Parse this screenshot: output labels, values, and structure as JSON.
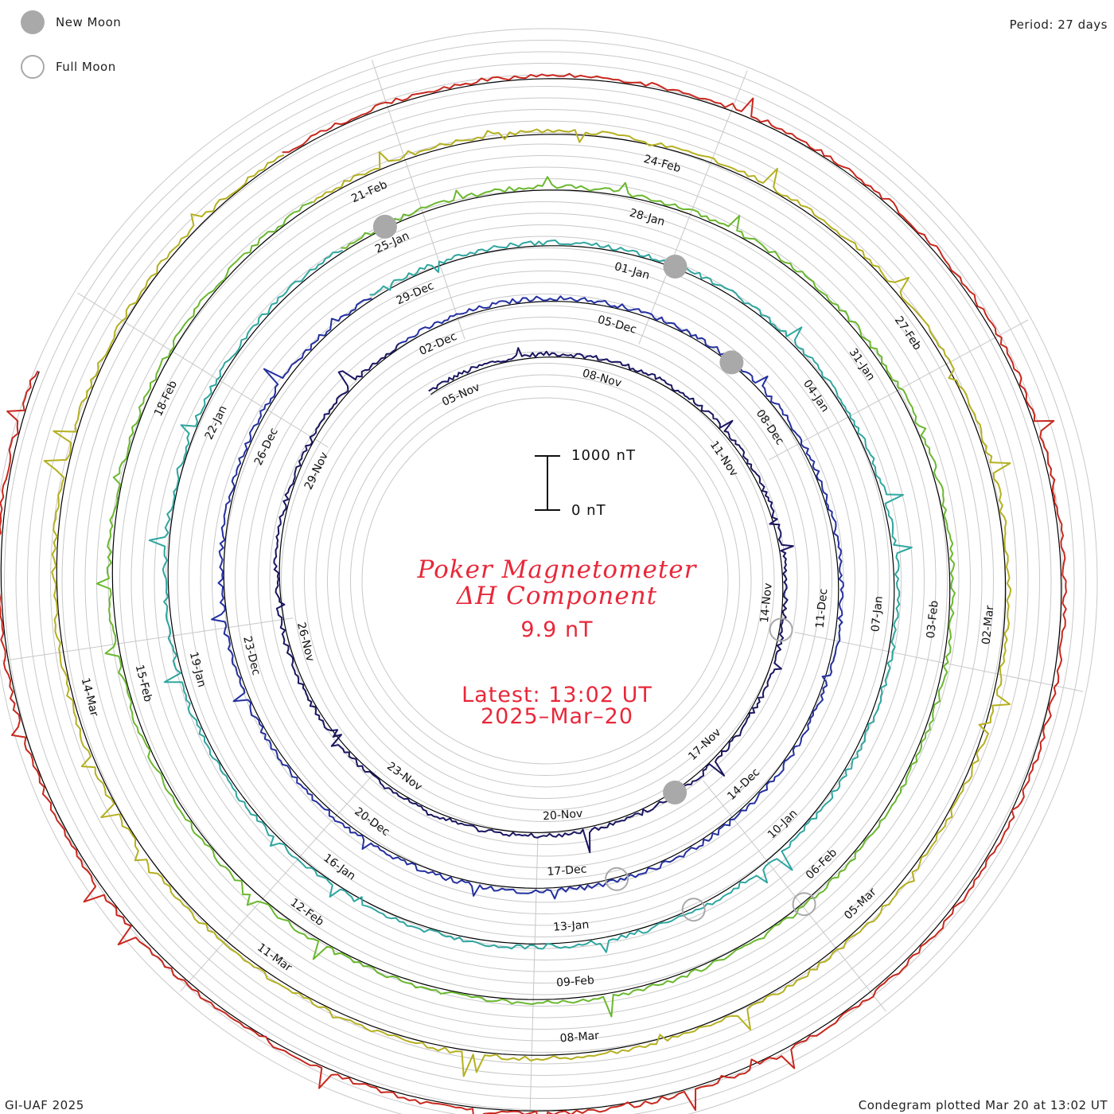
{
  "legend": {
    "new_moon_label": "New Moon",
    "full_moon_label": "Full Moon",
    "new_moon_color": "#a9a9a9"
  },
  "header": {
    "period": "Period: 27 days"
  },
  "title": {
    "line1": "Poker Magnetometer",
    "line2": "ΔH Component",
    "value": "9.9 nT",
    "latest": "Latest: 13:02 UT",
    "date": "2025–Mar–20",
    "color": "#e8283a"
  },
  "scale": {
    "top_label": "1000 nT",
    "bottom_label": "0 nT"
  },
  "footer": {
    "left": "GI-UAF 2025",
    "right": "Condegram plotted Mar 20 at 13:02 UT"
  },
  "chart_data": {
    "type": "line",
    "period_days": 27,
    "baseline": "spiral",
    "rotations": [
      {
        "name": "",
        "color": "#1a1660",
        "labels": [
          "05-Nov",
          "08-Nov",
          "11-Nov",
          "14-Nov",
          "17-Nov",
          "20-Nov",
          "23-Nov",
          "26-Nov",
          "29-Nov"
        ]
      },
      {
        "name": "",
        "color": "#2430a0",
        "labels": [
          "02-Dec",
          "05-Dec",
          "08-Dec",
          "11-Dec",
          "14-Dec",
          "17-Dec",
          "20-Dec",
          "23-Dec",
          "26-Dec"
        ]
      },
      {
        "name": "",
        "color": "#2fa6a0",
        "labels": [
          "29-Dec",
          "01-Jan",
          "04-Jan",
          "07-Jan",
          "10-Jan",
          "13-Jan",
          "16-Jan",
          "19-Jan",
          "22-Jan"
        ]
      },
      {
        "name": "",
        "color": "#6ab82e",
        "labels": [
          "25-Jan",
          "28-Jan",
          "31-Jan",
          "03-Feb",
          "06-Feb",
          "09-Feb",
          "12-Feb",
          "15-Feb",
          "18-Feb"
        ]
      },
      {
        "name": "",
        "color": "#b5b020",
        "labels": [
          "21-Feb",
          "24-Feb",
          "27-Feb",
          "02-Mar",
          "05-Mar",
          "08-Mar",
          "11-Mar",
          "14-Mar"
        ]
      },
      {
        "name": "",
        "color": "#c8281e",
        "labels": []
      }
    ],
    "scale_bar_nT": [
      0,
      1000
    ],
    "new_moons": [
      "2024-Dec-01",
      "2024-Dec-30",
      "2025-Jan-29",
      "2025-Feb-28"
    ],
    "full_moons": [
      "2024-Nov-15",
      "2024-Dec-15",
      "2025-Jan-13",
      "2025-Feb-12"
    ]
  }
}
